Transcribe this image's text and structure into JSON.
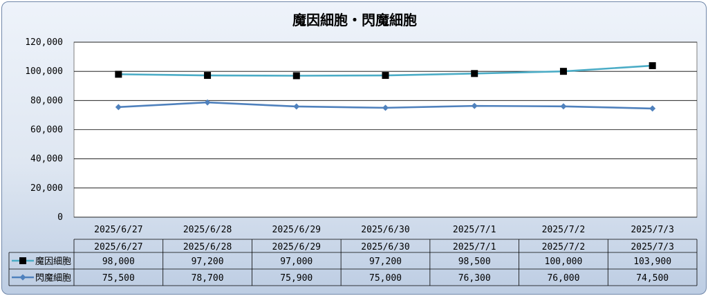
{
  "chart_data": {
    "type": "line",
    "title": "魔因細胞・閃魔細胞",
    "categories": [
      "2025/6/27",
      "2025/6/28",
      "2025/6/29",
      "2025/6/30",
      "2025/7/1",
      "2025/7/2",
      "2025/7/3"
    ],
    "y_ticks": [
      "0",
      "20,000",
      "40,000",
      "60,000",
      "80,000",
      "100,000",
      "120,000"
    ],
    "ylim": [
      0,
      120000
    ],
    "grid": true,
    "legend_position": "data-table-left",
    "series": [
      {
        "name": "魔因細胞",
        "values": [
          98000,
          97200,
          97000,
          97200,
          98500,
          100000,
          103900
        ],
        "labels": [
          "98,000",
          "97,200",
          "97,000",
          "97,200",
          "98,500",
          "100,000",
          "103,900"
        ],
        "color": "#4bacc6",
        "marker": "square",
        "marker_color": "#000000"
      },
      {
        "name": "閃魔細胞",
        "values": [
          75500,
          78700,
          75900,
          75000,
          76300,
          76000,
          74500
        ],
        "labels": [
          "75,500",
          "78,700",
          "75,900",
          "75,000",
          "76,300",
          "76,000",
          "74,500"
        ],
        "color": "#4f81bd",
        "marker": "diamond",
        "marker_color": "#4f81bd"
      }
    ]
  }
}
